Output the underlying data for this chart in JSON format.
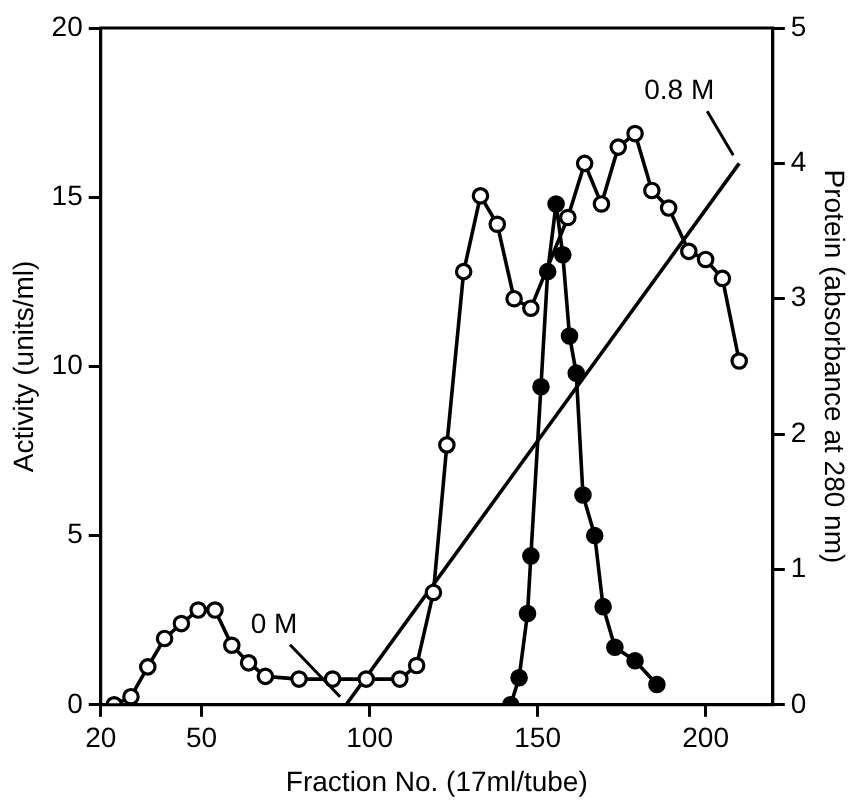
{
  "chart_data": {
    "type": "line",
    "xlabel": "Fraction No. (17ml/tube)",
    "ylabel": "Activity (units/ml)",
    "y2label": "Protein (absorbance at 280 nm)",
    "xlim": [
      20,
      220
    ],
    "xticks": [
      20,
      50,
      100,
      150,
      200
    ],
    "ylim": [
      0,
      20
    ],
    "yticks": [
      0,
      5,
      10,
      15,
      20
    ],
    "y2lim": [
      0,
      5
    ],
    "y2ticks": [
      0,
      1,
      2,
      3,
      4,
      5
    ],
    "grid": false,
    "legend": false,
    "marker": "circle",
    "series": [
      {
        "color": "#000000",
        "axis": "y2",
        "x": [
          24,
          29,
          34,
          39,
          44,
          49,
          54,
          59,
          64,
          69,
          79,
          89,
          99,
          109,
          114,
          119,
          123,
          128,
          133,
          138,
          143,
          148,
          159,
          164,
          169,
          174,
          179,
          184,
          189,
          195,
          200,
          205,
          210
        ],
        "values": [
          0,
          0.06,
          0.28,
          0.49,
          0.6,
          0.7,
          0.7,
          0.44,
          0.31,
          0.21,
          0.19,
          0.19,
          0.19,
          0.19,
          0.29,
          0.83,
          1.92,
          3.2,
          3.76,
          3.55,
          3.0,
          2.93,
          3.6,
          4.0,
          3.7,
          4.12,
          4.22,
          3.8,
          3.67,
          3.35,
          3.29,
          3.15,
          2.54
        ]
      },
      {
        "color": "#000000",
        "x": [
          142,
          144.5,
          147,
          148,
          151,
          153,
          155.5,
          157.5,
          159.5,
          161.5,
          163.5,
          167,
          169.5,
          173,
          179,
          185.5
        ],
        "values": [
          0,
          0.8,
          2.7,
          4.4,
          9.4,
          12.8,
          14.8,
          13.3,
          10.9,
          9.8,
          6.2,
          5.0,
          2.9,
          1.7,
          1.3,
          0.6
        ]
      },
      {
        "color": "#000000",
        "axis": "y2",
        "marker": "none",
        "x": [
          93,
          210
        ],
        "values": [
          0,
          4
        ]
      }
    ],
    "annotations": [
      {
        "text": "0 M",
        "x": 93,
        "y": 0
      },
      {
        "text": "0.8 M",
        "x": 210,
        "y": 16
      }
    ]
  }
}
